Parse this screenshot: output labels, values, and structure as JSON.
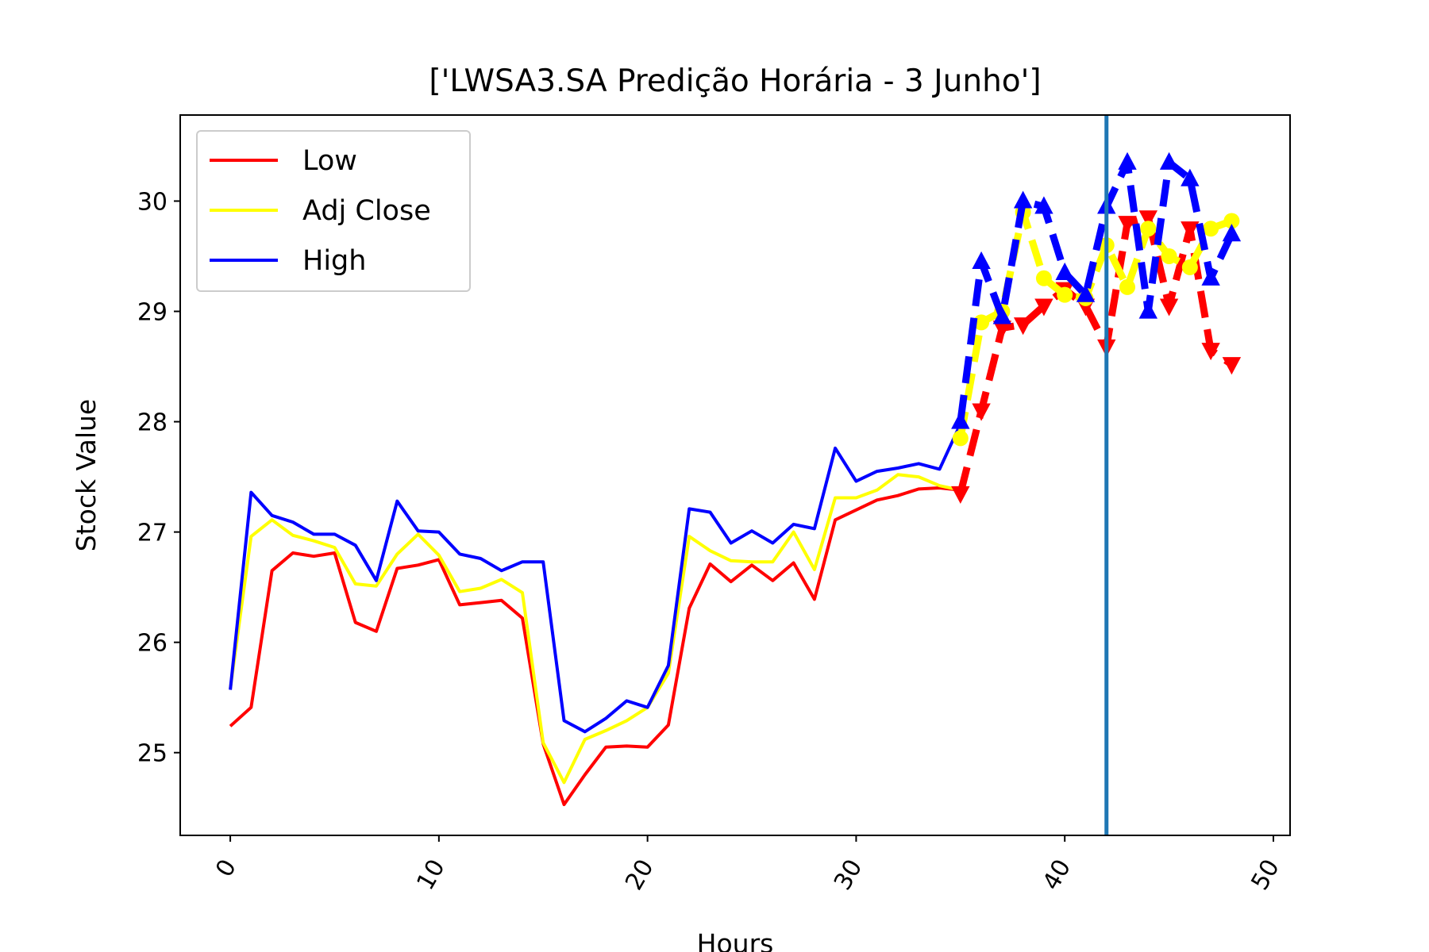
{
  "chart_data": {
    "type": "line",
    "title": "['LWSA3.SA Predição Horária - 3 Junho']",
    "xlabel": "Hours",
    "ylabel": "Stock Value",
    "xlim": [
      -2.4,
      50.8
    ],
    "ylim": [
      24.25,
      30.78
    ],
    "xticks": [
      0,
      10,
      20,
      30,
      40,
      50
    ],
    "yticks": [
      25,
      26,
      27,
      28,
      29,
      30
    ],
    "grid": false,
    "legend_position": "upper-left",
    "vertical_marker_x": 42,
    "vertical_marker_color": "#1f77b4",
    "series": [
      {
        "name": "Low",
        "color": "#ff0000",
        "x": [
          0,
          1,
          2,
          3,
          4,
          5,
          6,
          7,
          8,
          9,
          10,
          11,
          12,
          13,
          14,
          15,
          16,
          17,
          18,
          19,
          20,
          21,
          22,
          23,
          24,
          25,
          26,
          27,
          28,
          29,
          30,
          31,
          32,
          33,
          34,
          35
        ],
        "values": [
          25.24,
          25.41,
          26.65,
          26.81,
          26.78,
          26.81,
          26.18,
          26.1,
          26.67,
          26.7,
          26.75,
          26.34,
          26.36,
          26.38,
          26.22,
          25.08,
          24.53,
          24.8,
          25.05,
          25.06,
          25.05,
          25.25,
          26.31,
          26.71,
          26.55,
          26.7,
          26.56,
          26.72,
          26.39,
          27.11,
          27.2,
          27.29,
          27.33,
          27.39,
          27.4,
          27.38
        ]
      },
      {
        "name": "Adj Close",
        "color": "#ffff00",
        "x": [
          0,
          1,
          2,
          3,
          4,
          5,
          6,
          7,
          8,
          9,
          10,
          11,
          12,
          13,
          14,
          15,
          16,
          17,
          18,
          19,
          20,
          21,
          22,
          23,
          24,
          25,
          26,
          27,
          28,
          29,
          30,
          31,
          32,
          33,
          34,
          35
        ],
        "values": [
          25.58,
          26.96,
          27.11,
          26.97,
          26.92,
          26.86,
          26.53,
          26.51,
          26.8,
          26.98,
          26.79,
          26.46,
          26.49,
          26.57,
          26.45,
          25.09,
          24.73,
          25.12,
          25.2,
          25.29,
          25.41,
          25.72,
          26.96,
          26.83,
          26.74,
          26.73,
          26.73,
          27.0,
          26.66,
          27.31,
          27.31,
          27.38,
          27.52,
          27.5,
          27.42,
          27.38
        ]
      },
      {
        "name": "High",
        "color": "#0000ff",
        "x": [
          0,
          1,
          2,
          3,
          4,
          5,
          6,
          7,
          8,
          9,
          10,
          11,
          12,
          13,
          14,
          15,
          16,
          17,
          18,
          19,
          20,
          21,
          22,
          23,
          24,
          25,
          26,
          27,
          28,
          29,
          30,
          31,
          32,
          33,
          34,
          35
        ],
        "values": [
          25.57,
          27.36,
          27.15,
          27.09,
          26.98,
          26.98,
          26.88,
          26.56,
          27.28,
          27.01,
          27.0,
          26.8,
          26.76,
          26.65,
          26.73,
          26.73,
          25.29,
          25.19,
          25.31,
          25.47,
          25.41,
          25.79,
          27.21,
          27.18,
          26.9,
          27.01,
          26.9,
          27.07,
          27.03,
          27.76,
          27.46,
          27.55,
          27.58,
          27.62,
          27.57,
          27.98
        ]
      },
      {
        "name": "",
        "color": "#ff0000",
        "style": "dashed",
        "marker": "triangle-down",
        "x": [
          35,
          36,
          37,
          38,
          39,
          40,
          41,
          42,
          43,
          44,
          45,
          46,
          47,
          48
        ],
        "values": [
          27.35,
          28.1,
          28.85,
          28.88,
          29.05,
          29.2,
          29.05,
          28.68,
          29.8,
          29.85,
          29.05,
          29.75,
          28.65,
          28.52
        ]
      },
      {
        "name": "",
        "color": "#ffff00",
        "style": "dashed",
        "marker": "circle",
        "x": [
          35,
          36,
          37,
          38,
          39,
          40,
          41,
          42,
          43,
          44,
          45,
          46,
          47,
          48
        ],
        "values": [
          27.85,
          28.9,
          29.0,
          29.9,
          29.3,
          29.15,
          29.12,
          29.6,
          29.22,
          29.75,
          29.5,
          29.4,
          29.75,
          29.82
        ]
      },
      {
        "name": "",
        "color": "#0000ff",
        "style": "dashed",
        "marker": "triangle-up",
        "x": [
          35,
          36,
          37,
          38,
          39,
          40,
          41,
          42,
          43,
          44,
          45,
          46,
          47,
          48
        ],
        "values": [
          28.0,
          29.45,
          28.95,
          30.0,
          29.95,
          29.35,
          29.15,
          29.95,
          30.35,
          29.0,
          30.35,
          30.2,
          29.3,
          29.7
        ]
      }
    ]
  }
}
